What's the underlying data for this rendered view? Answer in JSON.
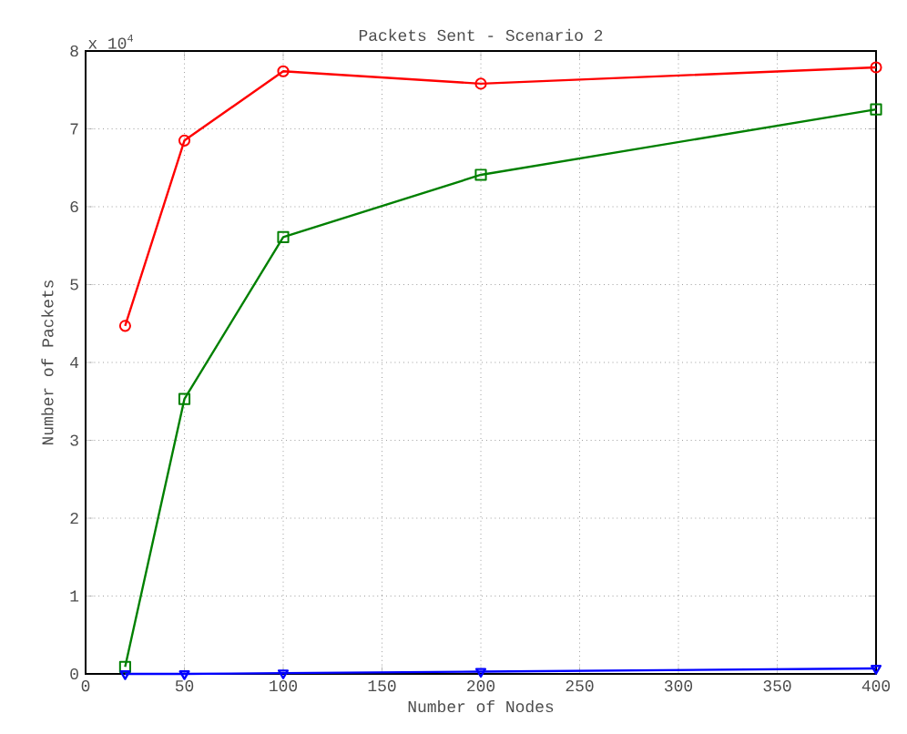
{
  "chart_data": {
    "type": "line",
    "title": "Packets Sent - Scenario 2",
    "xlabel": "Number of Nodes",
    "ylabel": "Number of Packets",
    "x": [
      20,
      50,
      100,
      200,
      400
    ],
    "series": [
      {
        "color": "#ff0000",
        "marker": "circle",
        "values": [
          4.47,
          6.85,
          7.74,
          7.58,
          7.79
        ]
      },
      {
        "color": "#008000",
        "marker": "square",
        "values": [
          0.09,
          3.53,
          5.61,
          6.41,
          7.25
        ]
      },
      {
        "color": "#0000ff",
        "marker": "triangle",
        "values": [
          0,
          0,
          0.01,
          0.03,
          0.07
        ]
      }
    ],
    "xlim": [
      0,
      400
    ],
    "xticks": [
      0,
      50,
      100,
      150,
      200,
      250,
      300,
      350,
      400
    ],
    "ylim": [
      0,
      8
    ],
    "yticks": [
      0,
      1,
      2,
      3,
      4,
      5,
      6,
      7,
      8
    ],
    "annotations": [
      "x 10$^{4}$"
    ],
    "grid": true,
    "line_style": "solid"
  }
}
